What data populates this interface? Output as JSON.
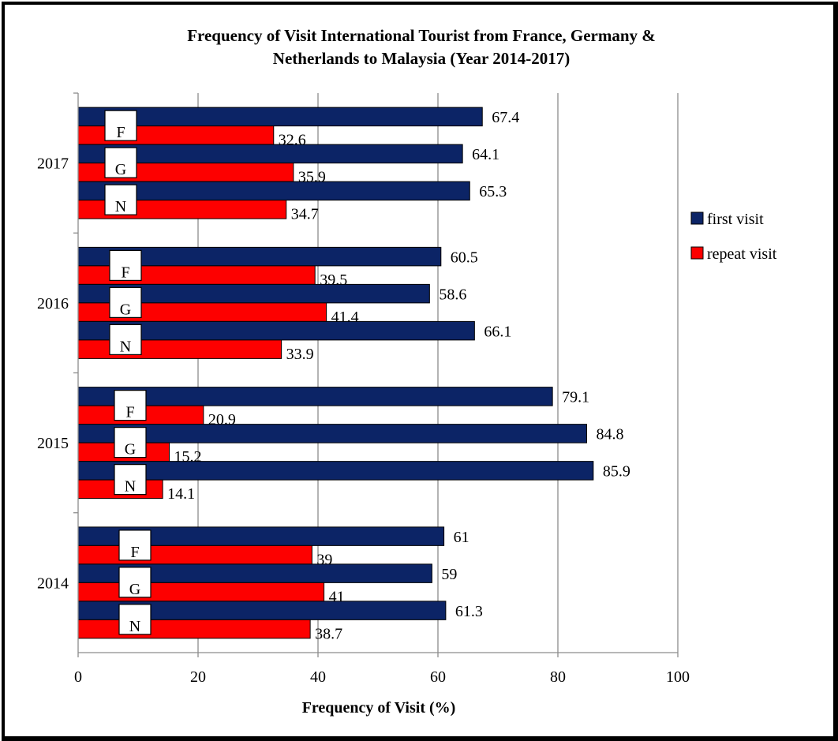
{
  "chart_data": {
    "type": "bar",
    "orientation": "horizontal",
    "title_line1": "Frequency of Visit International Tourist from France, Germany &",
    "title_line2": "Netherlands to Malaysia (Year 2014-2017)",
    "xlabel": "Frequency of Visit (%)",
    "ylabel": "",
    "xlim": [
      0,
      100
    ],
    "xticks": [
      "0",
      "20",
      "40",
      "60",
      "80",
      "100"
    ],
    "grid": true,
    "legend_position": "right",
    "series": [
      {
        "name": "first visit",
        "color": "#0c2466"
      },
      {
        "name": "repeat visit",
        "color": "#fd0000"
      }
    ],
    "groups": [
      {
        "year": "2017",
        "countries": [
          {
            "code": "F",
            "first": "67.4",
            "repeat": "32.6"
          },
          {
            "code": "G",
            "first": "64.1",
            "repeat": "35.9"
          },
          {
            "code": "N",
            "first": "65.3",
            "repeat": "34.7"
          }
        ]
      },
      {
        "year": "2016",
        "countries": [
          {
            "code": "F",
            "first": "60.5",
            "repeat": "39.5"
          },
          {
            "code": "G",
            "first": "58.6",
            "repeat": "41.4"
          },
          {
            "code": "N",
            "first": "66.1",
            "repeat": "33.9"
          }
        ]
      },
      {
        "year": "2015",
        "countries": [
          {
            "code": "F",
            "first": "79.1",
            "repeat": "20.9"
          },
          {
            "code": "G",
            "first": "84.8",
            "repeat": "15.2"
          },
          {
            "code": "N",
            "first": "85.9",
            "repeat": "14.1"
          }
        ]
      },
      {
        "year": "2014",
        "countries": [
          {
            "code": "F",
            "first": "61",
            "repeat": "39"
          },
          {
            "code": "G",
            "first": "59",
            "repeat": "41"
          },
          {
            "code": "N",
            "first": "61.3",
            "repeat": "38.7"
          }
        ]
      }
    ]
  }
}
